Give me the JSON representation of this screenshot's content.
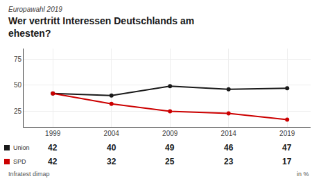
{
  "chart_data": {
    "type": "line",
    "title": "Wer vertritt Interessen Deutschlands am\nehesten?",
    "subtitle": "Europawahl 2019",
    "x": [
      1999,
      2004,
      2009,
      2014,
      2019
    ],
    "series": [
      {
        "name": "Union",
        "color": "#1a1a1a",
        "values": [
          42,
          40,
          49,
          46,
          47
        ]
      },
      {
        "name": "SPD",
        "color": "#cc0000",
        "values": [
          42,
          32,
          25,
          23,
          17
        ]
      }
    ],
    "xlim": [
      1996.5,
      2021
    ],
    "xticks": [
      1999,
      2004,
      2009,
      2014,
      2019
    ],
    "ylim": [
      10,
      85
    ],
    "yticks": [
      25,
      50,
      75
    ],
    "grid": true,
    "marker": "circle",
    "data_labels": true,
    "annotations": [
      "Infratest dimap",
      "in %"
    ]
  }
}
